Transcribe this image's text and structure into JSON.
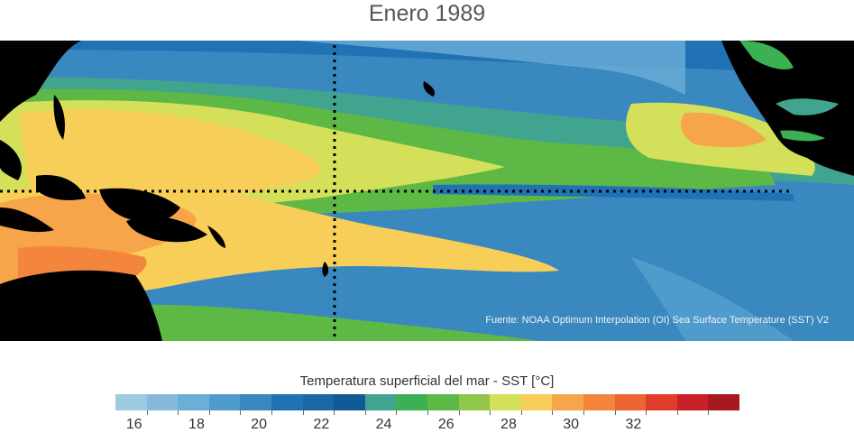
{
  "title": "Enero 1989",
  "source": "Fuente: NOAA Optimum Interpolation (OI) Sea Surface Temperature (SST) V2",
  "colorbar": {
    "title": "Temperatura superficial del mar - SST  [°C]",
    "colors": [
      "#9ecae1",
      "#86b9da",
      "#6baed6",
      "#4f9bcb",
      "#3a88c0",
      "#2171b5",
      "#1a67a6",
      "#125a95",
      "#41a48f",
      "#3bb153",
      "#5db846",
      "#90c74a",
      "#d4e05a",
      "#f7cf58",
      "#f7a54a",
      "#f3863c",
      "#ea6531",
      "#df3c2b",
      "#c81f28",
      "#a8191f"
    ],
    "ticks": [
      "16",
      "18",
      "20",
      "22",
      "24",
      "26",
      "28",
      "30",
      "32"
    ]
  },
  "icons": {
    "map": "sea-surface-temperature-map"
  }
}
